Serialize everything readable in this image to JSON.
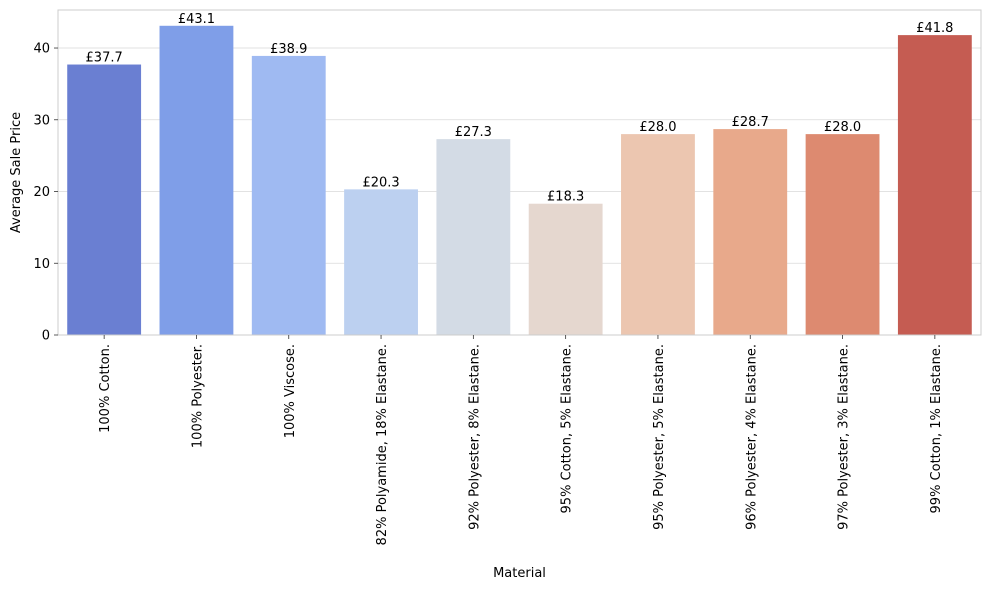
{
  "chart_data": {
    "type": "bar",
    "title": "",
    "xlabel": "Material",
    "ylabel": "Average Sale Price",
    "ylim": [
      0,
      45.3
    ],
    "yticks": [
      0,
      10,
      20,
      30,
      40
    ],
    "ytick_labels": [
      "0",
      "10",
      "20",
      "30",
      "40"
    ],
    "grid": "y",
    "legend": "none",
    "categories": [
      "100% Cotton.",
      "100% Polyester.",
      "100% Viscose.",
      "82% Polyamide, 18% Elastane.",
      "92% Polyester, 8% Elastane.",
      "95% Cotton, 5% Elastane.",
      "95% Polyester, 5% Elastane.",
      "96% Polyester, 4% Elastane.",
      "97% Polyester, 3% Elastane.",
      "99% Cotton, 1% Elastane."
    ],
    "values": [
      37.7,
      43.1,
      38.9,
      20.3,
      27.3,
      18.3,
      28.0,
      28.7,
      28.0,
      41.8
    ],
    "data_labels": [
      "£37.7",
      "£43.1",
      "£38.9",
      "£20.3",
      "£27.3",
      "£18.3",
      "£28.0",
      "£28.7",
      "£28.0",
      "£41.8"
    ],
    "colors": [
      "#6a7fd2",
      "#7f9ee8",
      "#9fbaf2",
      "#bcd0f0",
      "#d3dbe5",
      "#e5d7cf",
      "#ecc6b0",
      "#e8a98b",
      "#dd8a70",
      "#c55c52"
    ]
  }
}
